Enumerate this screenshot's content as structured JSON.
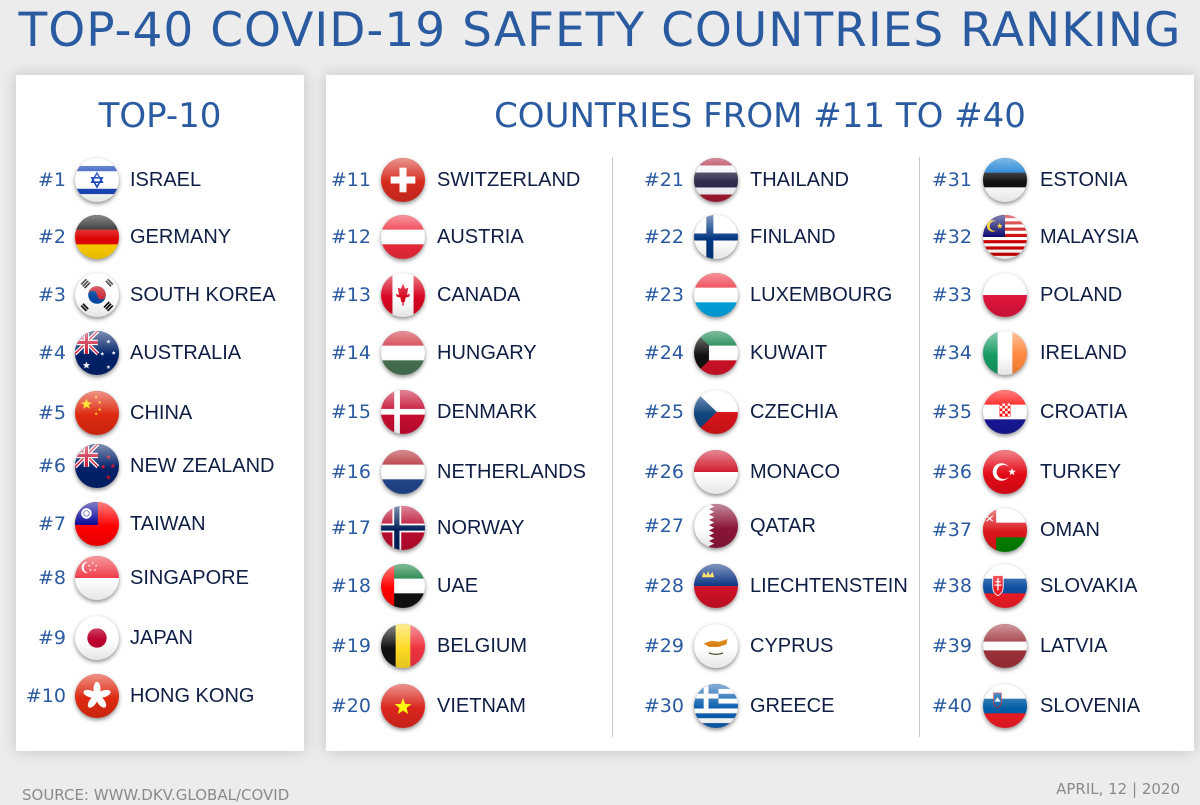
{
  "title": "TOP-40 COVID-19 SAFETY COUNTRIES RANKING",
  "left_heading": "TOP-10",
  "right_heading": "COUNTRIES FROM #11 TO #40",
  "countries": [
    {
      "rank": "#1",
      "name": "ISRAEL",
      "flag": "israel-flag-icon"
    },
    {
      "rank": "#2",
      "name": "GERMANY",
      "flag": "germany-flag-icon"
    },
    {
      "rank": "#3",
      "name": "SOUTH KOREA",
      "flag": "south-korea-flag-icon"
    },
    {
      "rank": "#4",
      "name": "AUSTRALIA",
      "flag": "australia-flag-icon"
    },
    {
      "rank": "#5",
      "name": "CHINA",
      "flag": "china-flag-icon"
    },
    {
      "rank": "#6",
      "name": "NEW ZEALAND",
      "flag": "new-zealand-flag-icon"
    },
    {
      "rank": "#7",
      "name": "TAIWAN",
      "flag": "taiwan-flag-icon"
    },
    {
      "rank": "#8",
      "name": "SINGAPORE",
      "flag": "singapore-flag-icon"
    },
    {
      "rank": "#9",
      "name": "JAPAN",
      "flag": "japan-flag-icon"
    },
    {
      "rank": "#10",
      "name": "HONG KONG",
      "flag": "hong-kong-flag-icon"
    },
    {
      "rank": "#11",
      "name": "SWITZERLAND",
      "flag": "switzerland-flag-icon"
    },
    {
      "rank": "#12",
      "name": "AUSTRIA",
      "flag": "austria-flag-icon"
    },
    {
      "rank": "#13",
      "name": "CANADA",
      "flag": "canada-flag-icon"
    },
    {
      "rank": "#14",
      "name": "HUNGARY",
      "flag": "hungary-flag-icon"
    },
    {
      "rank": "#15",
      "name": "DENMARK",
      "flag": "denmark-flag-icon"
    },
    {
      "rank": "#16",
      "name": "NETHERLANDS",
      "flag": "netherlands-flag-icon"
    },
    {
      "rank": "#17",
      "name": "NORWAY",
      "flag": "norway-flag-icon"
    },
    {
      "rank": "#18",
      "name": "UAE",
      "flag": "uae-flag-icon"
    },
    {
      "rank": "#19",
      "name": "BELGIUM",
      "flag": "belgium-flag-icon"
    },
    {
      "rank": "#20",
      "name": "VIETNAM",
      "flag": "vietnam-flag-icon"
    },
    {
      "rank": "#21",
      "name": "THAILAND",
      "flag": "thailand-flag-icon"
    },
    {
      "rank": "#22",
      "name": "FINLAND",
      "flag": "finland-flag-icon"
    },
    {
      "rank": "#23",
      "name": "LUXEMBOURG",
      "flag": "luxembourg-flag-icon"
    },
    {
      "rank": "#24",
      "name": "KUWAIT",
      "flag": "kuwait-flag-icon"
    },
    {
      "rank": "#25",
      "name": "CZECHIA",
      "flag": "czechia-flag-icon"
    },
    {
      "rank": "#26",
      "name": "MONACO",
      "flag": "monaco-flag-icon"
    },
    {
      "rank": "#27",
      "name": "QATAR",
      "flag": "qatar-flag-icon"
    },
    {
      "rank": "#28",
      "name": "LIECHTENSTEIN",
      "flag": "liechtenstein-flag-icon"
    },
    {
      "rank": "#29",
      "name": "CYPRUS",
      "flag": "cyprus-flag-icon"
    },
    {
      "rank": "#30",
      "name": "GREECE",
      "flag": "greece-flag-icon"
    },
    {
      "rank": "#31",
      "name": "ESTONIA",
      "flag": "estonia-flag-icon"
    },
    {
      "rank": "#32",
      "name": "MALAYSIA",
      "flag": "malaysia-flag-icon"
    },
    {
      "rank": "#33",
      "name": "POLAND",
      "flag": "poland-flag-icon"
    },
    {
      "rank": "#34",
      "name": "IRELAND",
      "flag": "ireland-flag-icon"
    },
    {
      "rank": "#35",
      "name": "CROATIA",
      "flag": "croatia-flag-icon"
    },
    {
      "rank": "#36",
      "name": "TURKEY",
      "flag": "turkey-flag-icon"
    },
    {
      "rank": "#37",
      "name": "OMAN",
      "flag": "oman-flag-icon"
    },
    {
      "rank": "#38",
      "name": "SLOVAKIA",
      "flag": "slovakia-flag-icon"
    },
    {
      "rank": "#39",
      "name": "LATVIA",
      "flag": "latvia-flag-icon"
    },
    {
      "rank": "#40",
      "name": "SLOVENIA",
      "flag": "slovenia-flag-icon"
    }
  ],
  "footer": {
    "source": "SOURCE: WWW.DKV.GLOBAL/COVID",
    "date": "APRIL, 12 | 2020"
  },
  "colors": {
    "accent_blue": "#2a5aa0",
    "country_name": "#0e1e44",
    "footer_gray": "#8a8a8a",
    "background": "#ececec"
  }
}
